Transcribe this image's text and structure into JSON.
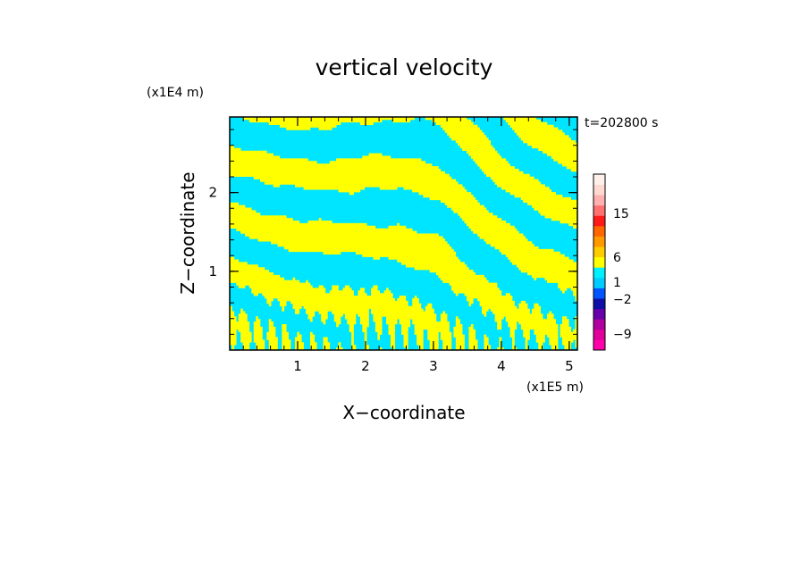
{
  "chart_data": {
    "type": "heatmap",
    "title": "vertical velocity",
    "xlabel": "X−coordinate",
    "ylabel": "Z−coordinate",
    "x_unit_label": "(x1E5 m)",
    "y_unit_label": "(x1E4 m)",
    "time_label": "t=202800 s",
    "xlim": [
      0,
      5.12
    ],
    "ylim": [
      0,
      2.96
    ],
    "x_ticks": [
      {
        "value": 1,
        "label": "1"
      },
      {
        "value": 2,
        "label": "2"
      },
      {
        "value": 3,
        "label": "3"
      },
      {
        "value": 4,
        "label": "4"
      },
      {
        "value": 5,
        "label": "5"
      }
    ],
    "y_ticks": [
      {
        "value": 1,
        "label": "1"
      },
      {
        "value": 2,
        "label": "2"
      }
    ],
    "field_colors": {
      "positive": "#ffff00",
      "negative": "#00e5ff"
    },
    "colorbar": {
      "bands": [
        {
          "level": -12,
          "color": "#ff00aa"
        },
        {
          "level": -9,
          "color": "#e0009a"
        },
        {
          "level": -6,
          "color": "#b000a0"
        },
        {
          "level": -4,
          "color": "#6600aa"
        },
        {
          "level": -2,
          "color": "#1010a8"
        },
        {
          "level": -1,
          "color": "#0055ff"
        },
        {
          "level": 0,
          "color": "#00ccff"
        },
        {
          "level": 0.5,
          "color": "#00f0ff"
        },
        {
          "level": 1,
          "color": "#ffff00"
        },
        {
          "level": 2,
          "color": "#ffcc00"
        },
        {
          "level": 4,
          "color": "#ff9900"
        },
        {
          "level": 6,
          "color": "#ff6600"
        },
        {
          "level": 9,
          "color": "#ff1a1a"
        },
        {
          "level": 12,
          "color": "#ff7070"
        },
        {
          "level": 15,
          "color": "#ffb0b0"
        },
        {
          "level": 18,
          "color": "#ffd8d0"
        },
        {
          "level": 21,
          "color": "#fff0ea"
        }
      ],
      "tick_labels": [
        "15",
        "6",
        "1",
        "−2",
        "−9"
      ]
    }
  }
}
